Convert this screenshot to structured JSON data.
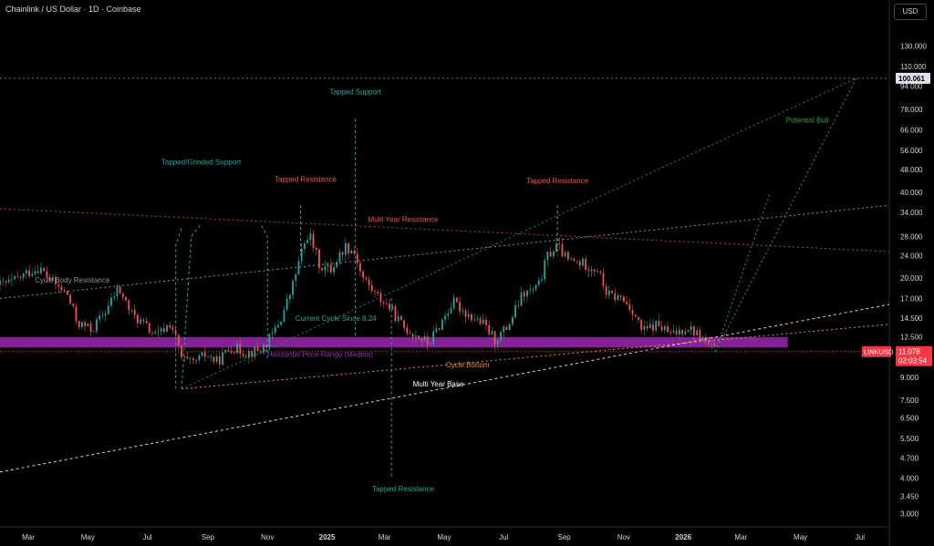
{
  "header": {
    "title": "Chainlink / US Dollar · 1D · Coinbase"
  },
  "currency": {
    "label": "USD"
  },
  "colors": {
    "background": "#000000",
    "up": "#26a69a",
    "down": "#ef5350",
    "range_band": "#9c27b0",
    "price_tag": "#f23645",
    "axis_text": "#d1d4dc"
  },
  "chart_data": {
    "type": "candlestick",
    "symbol": "LINKUSD",
    "current_price": "11.078",
    "countdown": "02:03:54",
    "top_price_tag": "100.061",
    "scale": "log",
    "ylim": [
      2.7,
      160
    ],
    "x_start": "2024-02-01",
    "x_end": "2026-07-31",
    "y_ticks": [
      "130.000",
      "110.000",
      "94.000",
      "78.000",
      "66.000",
      "56.000",
      "48.000",
      "40.000",
      "34.000",
      "28.000",
      "24.000",
      "20.000",
      "17.000",
      "14.500",
      "12.500",
      "9.000",
      "7.500",
      "6.500",
      "5.500",
      "4.700",
      "4.000",
      "3.450",
      "3.000"
    ],
    "x_ticks": [
      {
        "label": "Mar",
        "date": "2024-03-01"
      },
      {
        "label": "May",
        "date": "2024-05-01"
      },
      {
        "label": "Jul",
        "date": "2024-07-01"
      },
      {
        "label": "Sep",
        "date": "2024-09-01"
      },
      {
        "label": "Nov",
        "date": "2024-11-01"
      },
      {
        "label": "2025",
        "date": "2025-01-01"
      },
      {
        "label": "Mar",
        "date": "2025-03-01"
      },
      {
        "label": "May",
        "date": "2025-05-01"
      },
      {
        "label": "Jul",
        "date": "2025-07-01"
      },
      {
        "label": "Sep",
        "date": "2025-09-01"
      },
      {
        "label": "Nov",
        "date": "2025-11-01"
      },
      {
        "label": "2026",
        "date": "2026-01-01"
      },
      {
        "label": "Mar",
        "date": "2026-03-01"
      },
      {
        "label": "May",
        "date": "2026-05-01"
      },
      {
        "label": "Jul",
        "date": "2026-07-01"
      }
    ],
    "price_path": [
      [
        "2024-02-01",
        19.0
      ],
      [
        "2024-02-15",
        19.5
      ],
      [
        "2024-03-01",
        21.0
      ],
      [
        "2024-03-12",
        21.8
      ],
      [
        "2024-03-25",
        19.5
      ],
      [
        "2024-04-10",
        17.5
      ],
      [
        "2024-04-20",
        14.0
      ],
      [
        "2024-05-05",
        13.2
      ],
      [
        "2024-05-20",
        15.5
      ],
      [
        "2024-06-01",
        18.5
      ],
      [
        "2024-06-15",
        15.0
      ],
      [
        "2024-06-30",
        13.5
      ],
      [
        "2024-07-10",
        12.5
      ],
      [
        "2024-07-25",
        14.0
      ],
      [
        "2024-08-05",
        10.5
      ],
      [
        "2024-08-15",
        10.0
      ],
      [
        "2024-08-30",
        10.8
      ],
      [
        "2024-09-10",
        10.2
      ],
      [
        "2024-09-25",
        11.5
      ],
      [
        "2024-10-10",
        11.0
      ],
      [
        "2024-10-25",
        11.2
      ],
      [
        "2024-11-05",
        12.5
      ],
      [
        "2024-11-15",
        14.5
      ],
      [
        "2024-11-25",
        18.0
      ],
      [
        "2024-12-05",
        24.0
      ],
      [
        "2024-12-13",
        29.0
      ],
      [
        "2024-12-25",
        22.0
      ],
      [
        "2025-01-05",
        21.5
      ],
      [
        "2025-01-20",
        26.0
      ],
      [
        "2025-01-30",
        24.5
      ],
      [
        "2025-02-05",
        20.5
      ],
      [
        "2025-02-20",
        17.5
      ],
      [
        "2025-03-05",
        16.0
      ],
      [
        "2025-03-20",
        13.5
      ],
      [
        "2025-04-05",
        12.5
      ],
      [
        "2025-04-15",
        11.8
      ],
      [
        "2025-04-25",
        13.5
      ],
      [
        "2025-05-10",
        16.5
      ],
      [
        "2025-05-25",
        15.0
      ],
      [
        "2025-06-10",
        13.8
      ],
      [
        "2025-06-22",
        12.2
      ],
      [
        "2025-07-05",
        13.5
      ],
      [
        "2025-07-20",
        17.5
      ],
      [
        "2025-08-05",
        18.5
      ],
      [
        "2025-08-15",
        24.0
      ],
      [
        "2025-08-25",
        26.0
      ],
      [
        "2025-09-05",
        23.0
      ],
      [
        "2025-09-20",
        22.5
      ],
      [
        "2025-10-05",
        21.5
      ],
      [
        "2025-10-15",
        17.5
      ],
      [
        "2025-10-30",
        17.0
      ],
      [
        "2025-11-10",
        15.5
      ],
      [
        "2025-11-20",
        13.0
      ],
      [
        "2025-12-05",
        13.8
      ],
      [
        "2025-12-20",
        12.6
      ],
      [
        "2026-01-05",
        13.6
      ],
      [
        "2026-01-15",
        12.8
      ],
      [
        "2026-01-28",
        11.6
      ],
      [
        "2026-02-03",
        11.08
      ]
    ],
    "range_band": {
      "low": 11.45,
      "high": 12.45,
      "start": "2024-02-01",
      "end": "2026-04-18"
    },
    "lines": [
      {
        "name": "Multi Year Resistance",
        "from": [
          "2024-02-01",
          35.0
        ],
        "to": [
          "2026-07-31",
          24.8
        ],
        "color": "#b24252",
        "dash": "2 3"
      },
      {
        "name": "Cycle Body Resistance",
        "from": [
          "2024-02-01",
          17.0
        ],
        "to": [
          "2026-07-31",
          36.0
        ],
        "color": "#8a8e96",
        "dash": "2 3"
      },
      {
        "name": "Current Cycle Since 8.24",
        "from": [
          "2024-08-05",
          8.2
        ],
        "to": [
          "2026-06-27",
          100.061
        ],
        "color": "#1e8f6a",
        "dash": "2 3"
      },
      {
        "name": "Multi Year Base",
        "from": [
          "2024-02-01",
          4.2
        ],
        "to": [
          "2026-07-31",
          16.2
        ],
        "color": "#d1d4dc",
        "dash": "3 3"
      },
      {
        "name": "Cycle Bottom",
        "from": [
          "2024-08-05",
          8.2
        ],
        "to": [
          "2026-07-31",
          13.8
        ],
        "color": "#f0883e",
        "dash": "2 3"
      },
      {
        "name": "Potential Bull",
        "from": [
          "2026-02-03",
          11.08
        ],
        "to": [
          "2026-06-27",
          100.061
        ],
        "color": "#2e9e4f",
        "dash": "2 3"
      },
      {
        "name": "Potential Bull 2",
        "from": [
          "2026-02-03",
          11.08
        ],
        "to": [
          "2026-03-31",
          40.0
        ],
        "color": "#2e9e4f",
        "dash": "2 3"
      },
      {
        "name": "Level 100",
        "from": [
          "2024-02-01",
          100.061
        ],
        "to": [
          "2026-07-31",
          100.061
        ],
        "color": "#6a6d78",
        "dash": "2 3"
      },
      {
        "name": "Price line",
        "from": [
          "2024-02-01",
          11.078
        ],
        "to": [
          "2026-07-31",
          11.078
        ],
        "color": "#f23645",
        "dash": "1 2"
      }
    ],
    "support_wedge": [
      [
        [
          "2024-07-30",
          8.2
        ],
        [
          "2024-07-30",
          26.0
        ],
        [
          "2024-08-05",
          30.0
        ]
      ],
      [
        [
          "2024-08-05",
          8.2
        ],
        [
          "2024-08-15",
          28.0
        ],
        [
          "2024-08-25",
          31.0
        ]
      ],
      [
        [
          "2024-11-01",
          10.5
        ],
        [
          "2024-11-01",
          28.0
        ],
        [
          "2024-10-25",
          31.0
        ]
      ]
    ],
    "vertical_markers": [
      {
        "date": "2025-01-30",
        "from": 12.5,
        "to": 72.0,
        "color": "#26a69a"
      },
      {
        "date": "2025-03-08",
        "from": 4.0,
        "to": 17.0,
        "color": "#26a69a"
      },
      {
        "date": "2024-12-05",
        "from": 24.0,
        "to": 36.0,
        "color": "#8a8e96"
      },
      {
        "date": "2025-08-25",
        "from": 24.0,
        "to": 36.0,
        "color": "#8a8e96"
      }
    ],
    "annotations": [
      {
        "text": "Tapped Support",
        "date": "2025-01-30",
        "y": 88.0,
        "color": "#26a69a"
      },
      {
        "text": "Tapped/Grinded Support",
        "date": "2024-08-25",
        "y": 50.0,
        "color": "#26a69a"
      },
      {
        "text": "Tapped Resistance",
        "date": "2024-12-10",
        "y": 43.5,
        "color": "#ef5350"
      },
      {
        "text": "Tapped Resistance",
        "date": "2025-08-25",
        "y": 43.0,
        "color": "#ef5350"
      },
      {
        "text": "Multi Year Resistance",
        "date": "2025-03-20",
        "y": 31.5,
        "color": "#ef5350"
      },
      {
        "text": "Cycle Body Resistance",
        "date": "2024-04-15",
        "y": 19.3,
        "color": "#8a8e96"
      },
      {
        "text": "Potential Bull",
        "date": "2026-05-08",
        "y": 70.0,
        "color": "#2e9e4f"
      },
      {
        "text": "Current Cycle Since 8.24",
        "date": "2025-01-10",
        "y": 14.2,
        "color": "#26a69a"
      },
      {
        "text": "Horizontal Price Range (Median)",
        "date": "2024-12-25",
        "y": 10.6,
        "color": "#9c27b0"
      },
      {
        "text": "Cycle Bottom",
        "date": "2025-05-25",
        "y": 9.75,
        "color": "#f0883e"
      },
      {
        "text": "Multi Year Base",
        "date": "2025-04-25",
        "y": 8.35,
        "color": "#ffffff"
      },
      {
        "text": "Tapped Resistance",
        "date": "2025-03-20",
        "y": 3.6,
        "color": "#26a69a"
      }
    ]
  }
}
